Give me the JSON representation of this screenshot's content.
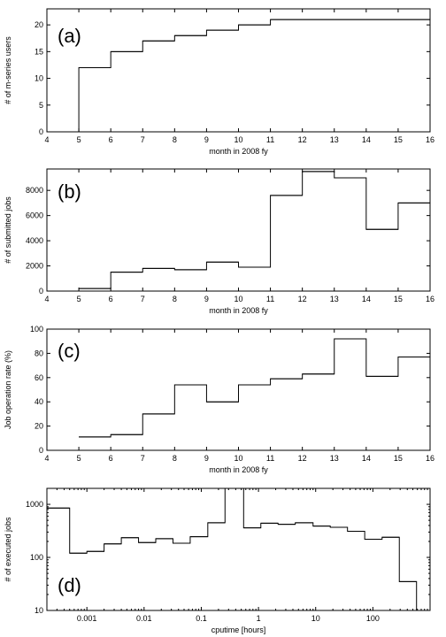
{
  "chart_data": [
    {
      "type": "line",
      "step": true,
      "panel_label": "(a)",
      "xlabel": "month in 2008 fy",
      "ylabel": "# of m-series users",
      "xlim": [
        4,
        16
      ],
      "ylim": [
        0,
        23
      ],
      "xticks": [
        4,
        5,
        6,
        7,
        8,
        9,
        10,
        11,
        12,
        13,
        14,
        15,
        16
      ],
      "yticks": [
        0,
        5,
        10,
        15,
        20
      ],
      "x": [
        5,
        6,
        7,
        8,
        9,
        10,
        11,
        12,
        13,
        14,
        15
      ],
      "values": [
        12,
        15,
        17,
        18,
        19,
        20,
        21,
        21,
        21,
        21,
        21
      ],
      "step_end": 16,
      "drop_to_zero_at_start": true
    },
    {
      "type": "line",
      "step": true,
      "panel_label": "(b)",
      "xlabel": "month in 2008 fy",
      "ylabel": "# of submitted jobs",
      "xlim": [
        4,
        16
      ],
      "ylim": [
        0,
        9700
      ],
      "xticks": [
        4,
        5,
        6,
        7,
        8,
        9,
        10,
        11,
        12,
        13,
        14,
        15,
        16
      ],
      "yticks": [
        0,
        2000,
        4000,
        6000,
        8000
      ],
      "x": [
        5,
        6,
        7,
        8,
        9,
        10,
        11,
        12,
        13,
        14,
        15
      ],
      "values": [
        200,
        1500,
        1800,
        1700,
        2300,
        1900,
        7600,
        9500,
        9000,
        4900,
        7000
      ],
      "step_end": 16,
      "drop_to_zero_at_start": false
    },
    {
      "type": "line",
      "step": true,
      "panel_label": "(c)",
      "xlabel": "month in 2008 fy",
      "ylabel": "Job operation rate (%)",
      "xlim": [
        4,
        16
      ],
      "ylim": [
        0,
        100
      ],
      "xticks": [
        4,
        5,
        6,
        7,
        8,
        9,
        10,
        11,
        12,
        13,
        14,
        15,
        16
      ],
      "yticks": [
        0,
        20,
        40,
        60,
        80,
        100
      ],
      "x": [
        5,
        6,
        7,
        8,
        9,
        10,
        11,
        12,
        13,
        14,
        15
      ],
      "values": [
        11,
        13,
        30,
        54,
        40,
        54,
        59,
        63,
        92,
        61,
        77
      ],
      "step_end": 16,
      "drop_to_zero_at_start": false
    },
    {
      "type": "line",
      "step": true,
      "panel_label": "(d)",
      "xlabel": "cputime [hours]",
      "ylabel": "# of executed jobs",
      "xscale": "log",
      "yscale": "log",
      "xlim": [
        0.0002,
        1000
      ],
      "ylim": [
        10,
        2000
      ],
      "xticks": [
        0.001,
        0.01,
        0.1,
        1,
        10,
        100
      ],
      "xtick_labels": [
        "0.001",
        "0.01",
        "0.1",
        "1",
        "10",
        "100"
      ],
      "yticks": [
        10,
        100,
        1000
      ],
      "ytick_labels": [
        "10",
        "100",
        "1000"
      ],
      "x": [
        0.0002,
        0.0005,
        0.001,
        0.002,
        0.004,
        0.008,
        0.016,
        0.032,
        0.064,
        0.13,
        0.26,
        0.55,
        1.1,
        2.2,
        4.4,
        9,
        18,
        36,
        72,
        145,
        290
      ],
      "values": [
        850,
        120,
        130,
        180,
        235,
        190,
        225,
        185,
        245,
        450,
        5000,
        360,
        440,
        420,
        450,
        390,
        370,
        310,
        220,
        240,
        35
      ],
      "step_end": 580,
      "drop_to_floor_at_end": true
    }
  ]
}
